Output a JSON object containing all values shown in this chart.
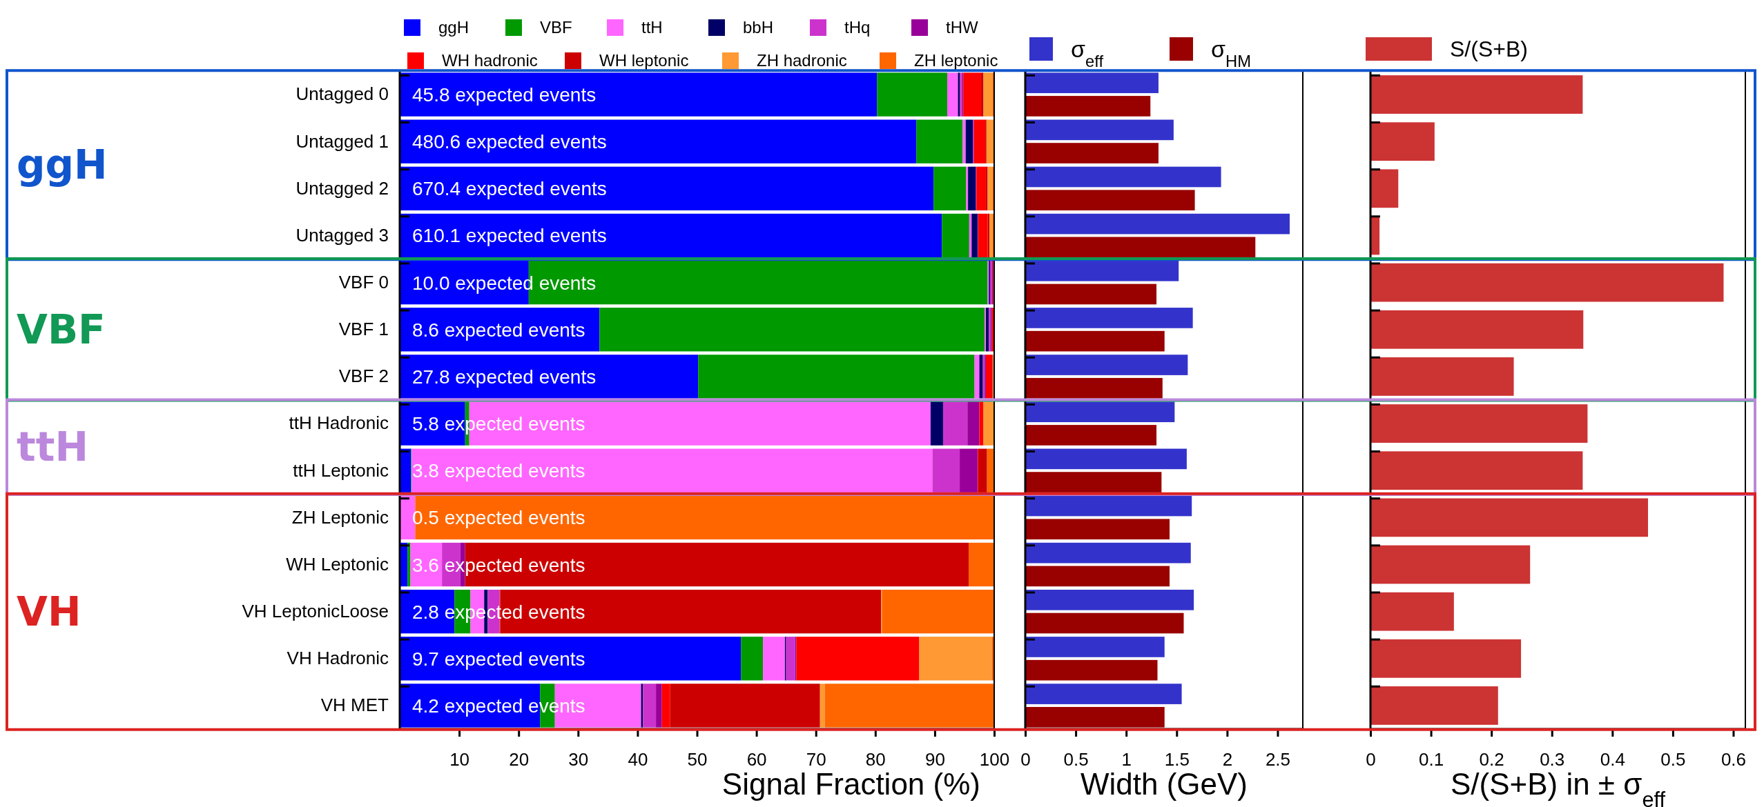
{
  "chart_data": [
    {
      "type": "bar",
      "orientation": "horizontal",
      "stacked": true,
      "legend": "top",
      "xlabel": "Signal Fraction (%)",
      "xlim": [
        0,
        100
      ],
      "xticks": [
        10,
        20,
        30,
        40,
        50,
        60,
        70,
        80,
        90,
        100
      ],
      "categories": [
        "Untagged 0",
        "Untagged 1",
        "Untagged 2",
        "Untagged 3",
        "VBF 0",
        "VBF 1",
        "VBF 2",
        "ttH Hadronic",
        "ttH Leptonic",
        "ZH Leptonic",
        "WH Leptonic",
        "VH LeptonicLoose",
        "VH Hadronic",
        "VH MET"
      ],
      "series": [
        {
          "name": "ggH",
          "color": "#0000ff",
          "values": [
            80.3,
            86.9,
            89.8,
            91.2,
            21.7,
            33.6,
            50.2,
            11.0,
            1.9,
            0,
            1.3,
            9.2,
            57.4,
            23.6
          ]
        },
        {
          "name": "VBF",
          "color": "#009900",
          "values": [
            11.8,
            7.8,
            5.5,
            4.6,
            77.2,
            64.8,
            46.5,
            0.7,
            0.1,
            0,
            0.5,
            2.7,
            3.7,
            2.5
          ]
        },
        {
          "name": "ttH",
          "color": "#ff66ff",
          "values": [
            1.8,
            0.5,
            0.3,
            0.4,
            0.2,
            0.2,
            0.8,
            77.6,
            87.6,
            2.6,
            5.3,
            2.3,
            3.7,
            14.5
          ]
        },
        {
          "name": "bbH",
          "color": "#000066",
          "values": [
            0.3,
            1.2,
            1.3,
            1.0,
            0.2,
            0.5,
            0.6,
            2.1,
            null,
            0,
            0,
            0.6,
            0.2,
            0.3
          ]
        },
        {
          "name": "tHq",
          "color": "#cc33cc",
          "values": [
            0.4,
            0.1,
            0,
            0,
            0.3,
            0.3,
            0.3,
            4.1,
            4.6,
            0,
            3.1,
            2.0,
            1.5,
            2.2
          ]
        },
        {
          "name": "tHW",
          "color": "#990099",
          "values": [
            0.2,
            0.1,
            0.1,
            0.1,
            0.2,
            0.2,
            0.2,
            2.0,
            3.0,
            0,
            0.8,
            null,
            0.2,
            1.0
          ]
        },
        {
          "name": "WH hadronic",
          "color": "#ff0000",
          "values": [
            3.0,
            1.9,
            1.6,
            1.6,
            0.2,
            0.3,
            1.1,
            0.7,
            0.1,
            0,
            0,
            0.1,
            20.7,
            1.4
          ]
        },
        {
          "name": "WH leptonic",
          "color": "#cc0000",
          "values": [
            0.4,
            0.2,
            0.3,
            0.3,
            0.1,
            0.1,
            0.1,
            0,
            1.5,
            0,
            84.7,
            64.1,
            null,
            25.2
          ]
        },
        {
          "name": "ZH hadronic",
          "color": "#ff9933",
          "values": [
            1.5,
            1.1,
            0.8,
            0.5,
            0,
            0,
            0.2,
            1.8,
            0,
            0,
            0,
            0.1,
            12.2,
            0.8
          ]
        },
        {
          "name": "ZH leptonic",
          "color": "#ff6600",
          "values": [
            0.3,
            0.2,
            0.3,
            0.3,
            0,
            0,
            0,
            0,
            1.1,
            97.4,
            4.3,
            18.9,
            0.3,
            28.5
          ]
        }
      ],
      "annotations": [
        "ggH",
        "VBF",
        "ttH",
        "VH",
        "45.8 expected events",
        "480.6 expected events",
        "670.4 expected events",
        "610.1 expected events",
        "10.0 expected events",
        "8.6 expected events",
        "27.8 expected events",
        "5.8 expected events",
        "3.8 expected events",
        "0.5 expected events",
        "3.6 expected events",
        "2.8 expected events",
        "9.7 expected events",
        "4.2 expected events"
      ]
    },
    {
      "type": "bar",
      "orientation": "horizontal",
      "legend": "top",
      "tick_labels": "x",
      "xlabel": "Width (GeV)",
      "xlim": [
        0,
        2.75
      ],
      "xticks": [
        0,
        0.5,
        1,
        1.5,
        2,
        2.5
      ],
      "categories": [
        null,
        null,
        null,
        null,
        null,
        null,
        null,
        null,
        null,
        null,
        null,
        null,
        null,
        null
      ],
      "series": [
        {
          "name": "σ$_{eff}$",
          "color": "#3333cc",
          "values": [
            1.32,
            1.47,
            1.94,
            2.62,
            1.52,
            1.66,
            1.61,
            1.48,
            1.6,
            1.65,
            1.64,
            1.67,
            1.38,
            1.55
          ]
        },
        {
          "name": "σ$_{HM}$",
          "color": "#990000",
          "values": [
            1.24,
            1.32,
            1.68,
            2.28,
            1.3,
            1.38,
            1.36,
            1.3,
            1.35,
            1.43,
            1.43,
            1.57,
            1.31,
            1.38
          ]
        }
      ]
    },
    {
      "type": "bar",
      "orientation": "horizontal",
      "legend": "top",
      "tick_labels": "x",
      "xlabel": "S/(S+B) in ± σ$_{eff}$",
      "xlim": [
        0,
        0.62
      ],
      "xticks": [
        0,
        0.1,
        0.2,
        0.3,
        0.4,
        0.5,
        0.6
      ],
      "categories": [
        null,
        null,
        null,
        null,
        null,
        null,
        null,
        null,
        null,
        null,
        null,
        null,
        null,
        null
      ],
      "series": [
        {
          "name": "S/(S+B)",
          "color": "#cc3333",
          "values": [
            0.351,
            0.106,
            0.046,
            0.015,
            0.584,
            0.352,
            0.237,
            0.359,
            0.351,
            0.459,
            0.264,
            0.138,
            0.249,
            0.211
          ]
        }
      ]
    }
  ]
}
